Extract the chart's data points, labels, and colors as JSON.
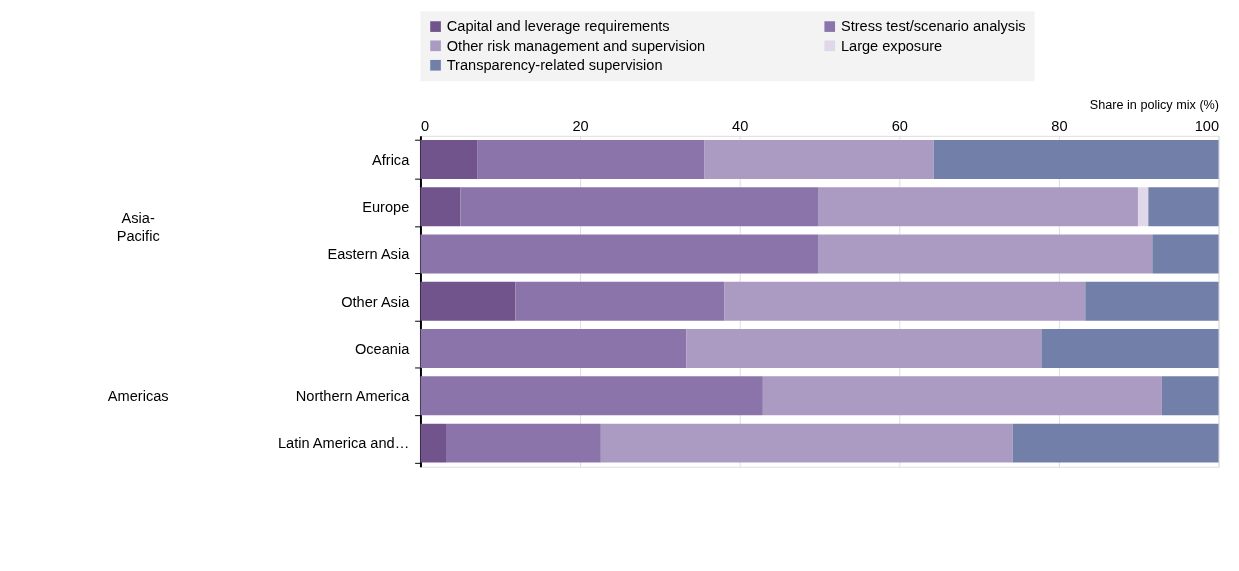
{
  "chart_data": {
    "type": "bar",
    "orientation": "horizontal",
    "stacked": true,
    "xlabel": "Share in policy mix (%)",
    "categories": [
      "Africa",
      "Europe",
      "Eastern Asia",
      "Other Asia",
      "Oceania",
      "Northern America",
      "Latin America and…"
    ],
    "series": [
      {
        "name": "Capital and leverage requirements",
        "color": "#70548b",
        "values": [
          7.1,
          5.0,
          0,
          11.9,
          0,
          0,
          3.2
        ]
      },
      {
        "name": "Stress test/scenario analysis",
        "color": "#8b74a9",
        "values": [
          28.5,
          44.9,
          49.9,
          26.2,
          33.3,
          42.9,
          19.4
        ]
      },
      {
        "name": "Other risk management and supervision",
        "color": "#ab9bc3",
        "values": [
          28.7,
          40.0,
          41.8,
          45.2,
          44.5,
          50.0,
          51.6
        ]
      },
      {
        "name": "Large exposure",
        "color": "#e0d8e8",
        "values": [
          0,
          1.3,
          0,
          0,
          0,
          0,
          0
        ]
      },
      {
        "name": "Transparency-related supervision",
        "color": "#727fa8",
        "values": [
          35.7,
          8.8,
          8.3,
          16.7,
          22.2,
          7.1,
          25.8
        ]
      }
    ],
    "xlim": [
      0,
      100
    ],
    "xticks": [
      0,
      20,
      40,
      60,
      80,
      100
    ],
    "grid": "x",
    "legend": "top",
    "annotations": [
      "Asia-Pacific",
      "Americas"
    ]
  }
}
